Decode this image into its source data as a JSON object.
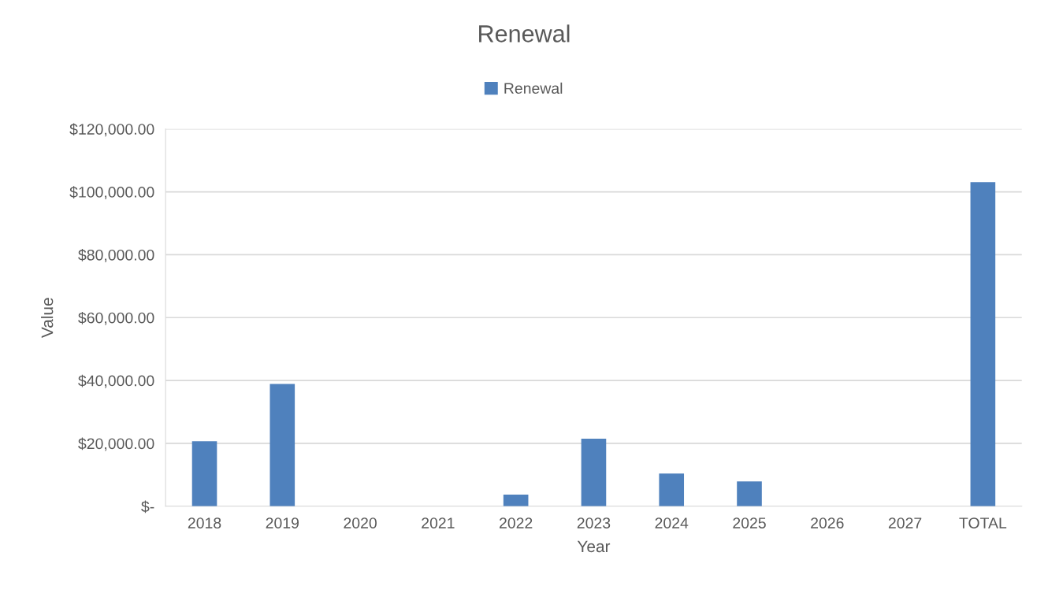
{
  "chart_data": {
    "type": "bar",
    "title": "Renewal",
    "xlabel": "Year",
    "ylabel": "Value",
    "categories": [
      "2018",
      "2019",
      "2020",
      "2021",
      "2022",
      "2023",
      "2024",
      "2025",
      "2026",
      "2027",
      "TOTAL"
    ],
    "series": [
      {
        "name": "Renewal",
        "color": "#4f81bd",
        "values": [
          20700,
          38900,
          0,
          0,
          3700,
          21500,
          10400,
          7900,
          0,
          0,
          103100
        ]
      }
    ],
    "ylim": [
      0,
      120000
    ],
    "yticks": [
      {
        "value": 0,
        "label": "$-"
      },
      {
        "value": 20000,
        "label": "$20,000.00"
      },
      {
        "value": 40000,
        "label": "$40,000.00"
      },
      {
        "value": 60000,
        "label": "$60,000.00"
      },
      {
        "value": 80000,
        "label": "$80,000.00"
      },
      {
        "value": 100000,
        "label": "$100,000.00"
      },
      {
        "value": 120000,
        "label": "$120,000.00"
      }
    ],
    "grid": "y",
    "legend": "top"
  }
}
